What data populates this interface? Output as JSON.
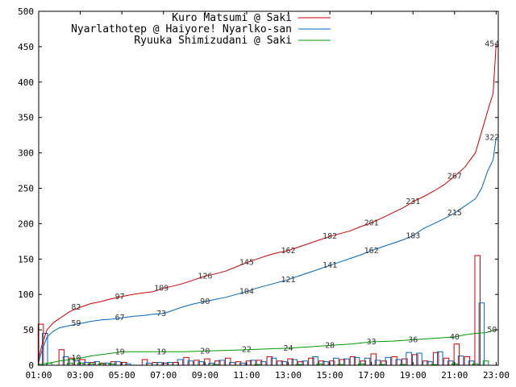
{
  "chart_data": {
    "type": "line",
    "title": "",
    "xlabel": "",
    "ylabel": "",
    "ylim": [
      0,
      500
    ],
    "yticks": [
      0,
      50,
      100,
      150,
      200,
      250,
      300,
      350,
      400,
      450,
      500
    ],
    "xlim": [
      1,
      23.1
    ],
    "xticks": [
      {
        "x": 1,
        "label": "01:00"
      },
      {
        "x": 3,
        "label": "03:00"
      },
      {
        "x": 5,
        "label": "05:00"
      },
      {
        "x": 7,
        "label": "07:00"
      },
      {
        "x": 9,
        "label": "09:00"
      },
      {
        "x": 11,
        "label": "11:00"
      },
      {
        "x": 13,
        "label": "13:00"
      },
      {
        "x": 15,
        "label": "15:00"
      },
      {
        "x": 17,
        "label": "17:00"
      },
      {
        "x": 19,
        "label": "19:00"
      },
      {
        "x": 21,
        "label": "21:00"
      },
      {
        "x": 23,
        "label": "23:00"
      }
    ],
    "grid": false,
    "legend_position": "top-right",
    "series": [
      {
        "name": "Kuro Matsumi @ Saki",
        "color": "#cc0000",
        "cumulative": [
          [
            1.0,
            10
          ],
          [
            1.15,
            28
          ],
          [
            1.4,
            50
          ],
          [
            1.7,
            60
          ],
          [
            2.0,
            66
          ],
          [
            2.5,
            76
          ],
          [
            3.0,
            82
          ],
          [
            3.5,
            87
          ],
          [
            4.0,
            90
          ],
          [
            4.5,
            94
          ],
          [
            5.0,
            97
          ],
          [
            5.5,
            100
          ],
          [
            6.0,
            102
          ],
          [
            6.5,
            104
          ],
          [
            7.0,
            109
          ],
          [
            7.5,
            112
          ],
          [
            8.0,
            116
          ],
          [
            8.5,
            121
          ],
          [
            9.0,
            126
          ],
          [
            9.5,
            129
          ],
          [
            10.0,
            133
          ],
          [
            10.5,
            139
          ],
          [
            11.0,
            145
          ],
          [
            11.5,
            150
          ],
          [
            12.0,
            155
          ],
          [
            12.5,
            159
          ],
          [
            13.0,
            162
          ],
          [
            13.5,
            167
          ],
          [
            14.0,
            172
          ],
          [
            14.5,
            177
          ],
          [
            15.0,
            182
          ],
          [
            15.5,
            186
          ],
          [
            16.0,
            190
          ],
          [
            16.5,
            196
          ],
          [
            17.0,
            201
          ],
          [
            17.5,
            208
          ],
          [
            18.0,
            215
          ],
          [
            18.5,
            222
          ],
          [
            19.0,
            231
          ],
          [
            19.5,
            238
          ],
          [
            20.0,
            246
          ],
          [
            20.5,
            255
          ],
          [
            21.0,
            267
          ],
          [
            21.5,
            280
          ],
          [
            22.0,
            300
          ],
          [
            22.3,
            330
          ],
          [
            22.6,
            360
          ],
          [
            22.85,
            384
          ],
          [
            23.0,
            454
          ]
        ],
        "annotations": [
          {
            "x": 2.8,
            "y": 82,
            "label": "82"
          },
          {
            "x": 4.9,
            "y": 97,
            "label": "97"
          },
          {
            "x": 6.9,
            "y": 109,
            "label": "109"
          },
          {
            "x": 9.0,
            "y": 126,
            "label": "126"
          },
          {
            "x": 11.0,
            "y": 145,
            "label": "145"
          },
          {
            "x": 13.0,
            "y": 162,
            "label": "162"
          },
          {
            "x": 15.0,
            "y": 182,
            "label": "182"
          },
          {
            "x": 17.0,
            "y": 201,
            "label": "201"
          },
          {
            "x": 19.0,
            "y": 231,
            "label": "231"
          },
          {
            "x": 21.0,
            "y": 267,
            "label": "267"
          },
          {
            "x": 22.8,
            "y": 454,
            "label": "454"
          }
        ],
        "bars": [
          {
            "x": 1.1,
            "v": 58
          },
          {
            "x": 2.1,
            "v": 22
          },
          {
            "x": 2.6,
            "v": 10
          },
          {
            "x": 3.1,
            "v": 8
          },
          {
            "x": 3.6,
            "v": 4
          },
          {
            "x": 4.1,
            "v": 3
          },
          {
            "x": 4.6,
            "v": 5
          },
          {
            "x": 5.1,
            "v": 4
          },
          {
            "x": 6.1,
            "v": 8
          },
          {
            "x": 6.6,
            "v": 4
          },
          {
            "x": 7.1,
            "v": 3
          },
          {
            "x": 7.6,
            "v": 4
          },
          {
            "x": 8.1,
            "v": 11
          },
          {
            "x": 8.6,
            "v": 7
          },
          {
            "x": 9.1,
            "v": 9
          },
          {
            "x": 9.6,
            "v": 6
          },
          {
            "x": 10.1,
            "v": 10
          },
          {
            "x": 10.6,
            "v": 5
          },
          {
            "x": 11.1,
            "v": 6
          },
          {
            "x": 11.6,
            "v": 7
          },
          {
            "x": 12.1,
            "v": 12
          },
          {
            "x": 12.6,
            "v": 6
          },
          {
            "x": 13.1,
            "v": 9
          },
          {
            "x": 13.6,
            "v": 5
          },
          {
            "x": 14.1,
            "v": 10
          },
          {
            "x": 14.6,
            "v": 6
          },
          {
            "x": 15.1,
            "v": 6
          },
          {
            "x": 15.6,
            "v": 8
          },
          {
            "x": 16.1,
            "v": 12
          },
          {
            "x": 16.6,
            "v": 6
          },
          {
            "x": 17.1,
            "v": 16
          },
          {
            "x": 17.6,
            "v": 6
          },
          {
            "x": 18.1,
            "v": 12
          },
          {
            "x": 18.6,
            "v": 9
          },
          {
            "x": 19.1,
            "v": 15
          },
          {
            "x": 19.6,
            "v": 6
          },
          {
            "x": 20.1,
            "v": 18
          },
          {
            "x": 20.6,
            "v": 10
          },
          {
            "x": 21.1,
            "v": 30
          },
          {
            "x": 21.6,
            "v": 12
          },
          {
            "x": 22.1,
            "v": 155
          }
        ]
      },
      {
        "name": "Nyarlathotep @ Haiyore! Nyarlko-san",
        "color": "#0066bb",
        "cumulative": [
          [
            1.0,
            5
          ],
          [
            1.15,
            20
          ],
          [
            1.4,
            40
          ],
          [
            1.7,
            48
          ],
          [
            2.0,
            53
          ],
          [
            2.5,
            56
          ],
          [
            3.0,
            59
          ],
          [
            3.5,
            62
          ],
          [
            4.0,
            64
          ],
          [
            4.5,
            65
          ],
          [
            5.0,
            67
          ],
          [
            5.5,
            69
          ],
          [
            6.0,
            70
          ],
          [
            6.5,
            72
          ],
          [
            7.0,
            73
          ],
          [
            7.5,
            78
          ],
          [
            8.0,
            83
          ],
          [
            8.5,
            87
          ],
          [
            9.0,
            90
          ],
          [
            9.5,
            93
          ],
          [
            10.0,
            96
          ],
          [
            10.5,
            100
          ],
          [
            11.0,
            104
          ],
          [
            11.5,
            109
          ],
          [
            12.0,
            113
          ],
          [
            12.5,
            117
          ],
          [
            13.0,
            121
          ],
          [
            13.5,
            126
          ],
          [
            14.0,
            131
          ],
          [
            14.5,
            136
          ],
          [
            15.0,
            141
          ],
          [
            15.5,
            146
          ],
          [
            16.0,
            151
          ],
          [
            16.5,
            156
          ],
          [
            17.0,
            162
          ],
          [
            17.5,
            167
          ],
          [
            18.0,
            172
          ],
          [
            18.5,
            177
          ],
          [
            19.0,
            183
          ],
          [
            19.5,
            193
          ],
          [
            20.0,
            200
          ],
          [
            20.5,
            207
          ],
          [
            21.0,
            215
          ],
          [
            21.5,
            225
          ],
          [
            22.0,
            235
          ],
          [
            22.3,
            250
          ],
          [
            22.6,
            275
          ],
          [
            22.85,
            290
          ],
          [
            23.0,
            322
          ]
        ],
        "annotations": [
          {
            "x": 2.8,
            "y": 59,
            "label": "59"
          },
          {
            "x": 4.9,
            "y": 67,
            "label": "67"
          },
          {
            "x": 6.9,
            "y": 73,
            "label": "73"
          },
          {
            "x": 9.0,
            "y": 90,
            "label": "90"
          },
          {
            "x": 11.0,
            "y": 104,
            "label": "104"
          },
          {
            "x": 13.0,
            "y": 121,
            "label": "121"
          },
          {
            "x": 15.0,
            "y": 141,
            "label": "141"
          },
          {
            "x": 17.0,
            "y": 162,
            "label": "162"
          },
          {
            "x": 19.0,
            "y": 183,
            "label": "183"
          },
          {
            "x": 21.0,
            "y": 215,
            "label": "215"
          },
          {
            "x": 22.8,
            "y": 322,
            "label": "322"
          }
        ],
        "bars": [
          {
            "x": 1.3,
            "v": 45
          },
          {
            "x": 2.3,
            "v": 12
          },
          {
            "x": 2.8,
            "v": 6
          },
          {
            "x": 3.3,
            "v": 4
          },
          {
            "x": 3.8,
            "v": 5
          },
          {
            "x": 4.3,
            "v": 3
          },
          {
            "x": 4.8,
            "v": 5
          },
          {
            "x": 5.3,
            "v": 2
          },
          {
            "x": 6.3,
            "v": 3
          },
          {
            "x": 6.8,
            "v": 4
          },
          {
            "x": 7.3,
            "v": 4
          },
          {
            "x": 7.8,
            "v": 8
          },
          {
            "x": 8.3,
            "v": 6
          },
          {
            "x": 8.8,
            "v": 5
          },
          {
            "x": 9.3,
            "v": 3
          },
          {
            "x": 9.8,
            "v": 7
          },
          {
            "x": 10.3,
            "v": 4
          },
          {
            "x": 10.8,
            "v": 3
          },
          {
            "x": 11.3,
            "v": 7
          },
          {
            "x": 11.8,
            "v": 5
          },
          {
            "x": 12.3,
            "v": 10
          },
          {
            "x": 12.8,
            "v": 5
          },
          {
            "x": 13.3,
            "v": 8
          },
          {
            "x": 13.8,
            "v": 6
          },
          {
            "x": 14.3,
            "v": 12
          },
          {
            "x": 14.8,
            "v": 5
          },
          {
            "x": 15.3,
            "v": 10
          },
          {
            "x": 15.8,
            "v": 9
          },
          {
            "x": 16.3,
            "v": 11
          },
          {
            "x": 16.8,
            "v": 10
          },
          {
            "x": 17.3,
            "v": 7
          },
          {
            "x": 17.8,
            "v": 11
          },
          {
            "x": 18.3,
            "v": 8
          },
          {
            "x": 18.8,
            "v": 18
          },
          {
            "x": 19.3,
            "v": 17
          },
          {
            "x": 19.8,
            "v": 5
          },
          {
            "x": 20.3,
            "v": 19
          },
          {
            "x": 20.8,
            "v": 6
          },
          {
            "x": 21.3,
            "v": 13
          },
          {
            "x": 21.8,
            "v": 6
          },
          {
            "x": 22.3,
            "v": 88
          }
        ]
      },
      {
        "name": "Ryuuka Shimizudani @ Saki",
        "color": "#009900",
        "cumulative": [
          [
            1.0,
            1
          ],
          [
            1.5,
            3
          ],
          [
            2.0,
            6
          ],
          [
            2.5,
            8
          ],
          [
            3.0,
            10
          ],
          [
            3.5,
            13
          ],
          [
            4.0,
            15
          ],
          [
            4.5,
            17
          ],
          [
            5.0,
            19
          ],
          [
            6.0,
            19
          ],
          [
            7.0,
            19
          ],
          [
            8.0,
            19
          ],
          [
            9.0,
            20
          ],
          [
            10.0,
            21
          ],
          [
            11.0,
            22
          ],
          [
            12.0,
            23
          ],
          [
            13.0,
            24
          ],
          [
            14.0,
            26
          ],
          [
            15.0,
            28
          ],
          [
            16.0,
            30
          ],
          [
            17.0,
            33
          ],
          [
            18.0,
            34
          ],
          [
            19.0,
            36
          ],
          [
            20.0,
            38
          ],
          [
            21.0,
            40
          ],
          [
            21.5,
            43
          ],
          [
            22.0,
            45
          ],
          [
            22.5,
            46
          ],
          [
            23.0,
            50
          ]
        ],
        "annotations": [
          {
            "x": 2.8,
            "y": 10,
            "label": "10"
          },
          {
            "x": 4.9,
            "y": 19,
            "label": "19"
          },
          {
            "x": 6.9,
            "y": 19,
            "label": "19"
          },
          {
            "x": 9.0,
            "y": 20,
            "label": "20"
          },
          {
            "x": 11.0,
            "y": 22,
            "label": "22"
          },
          {
            "x": 13.0,
            "y": 24,
            "label": "24"
          },
          {
            "x": 15.0,
            "y": 28,
            "label": "28"
          },
          {
            "x": 17.0,
            "y": 33,
            "label": "33"
          },
          {
            "x": 19.0,
            "y": 36,
            "label": "36"
          },
          {
            "x": 21.0,
            "y": 40,
            "label": "40"
          },
          {
            "x": 22.8,
            "y": 50,
            "label": "50"
          }
        ],
        "bars": [
          {
            "x": 1.5,
            "v": 3
          },
          {
            "x": 2.5,
            "v": 3
          },
          {
            "x": 3.0,
            "v": 3
          },
          {
            "x": 3.5,
            "v": 2
          },
          {
            "x": 4.0,
            "v": 2
          },
          {
            "x": 4.5,
            "v": 2
          },
          {
            "x": 9.5,
            "v": 1
          },
          {
            "x": 11.5,
            "v": 1
          },
          {
            "x": 13.5,
            "v": 1
          },
          {
            "x": 14.5,
            "v": 2
          },
          {
            "x": 15.5,
            "v": 1
          },
          {
            "x": 16.5,
            "v": 2
          },
          {
            "x": 17.5,
            "v": 1
          },
          {
            "x": 18.5,
            "v": 1
          },
          {
            "x": 20.0,
            "v": 1
          },
          {
            "x": 21.0,
            "v": 2
          },
          {
            "x": 22.0,
            "v": 2
          },
          {
            "x": 22.5,
            "v": 6
          }
        ]
      }
    ]
  }
}
